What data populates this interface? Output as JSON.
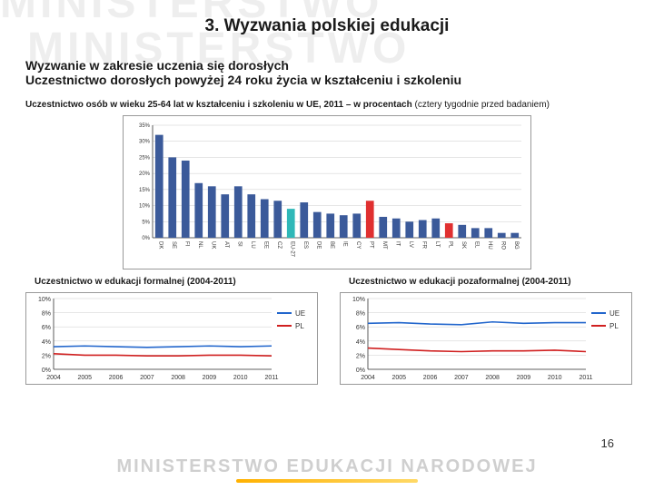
{
  "watermark": {
    "top1": "MINISTERSTWO",
    "top2": "MINISTERSTWO",
    "bottom": "MINISTERSTWO EDUKACJI NARODOWEJ"
  },
  "title": "3. Wyzwania polskiej edukacji",
  "subtitle1": "Wyzwanie w zakresie uczenia się dorosłych",
  "subtitle2": "Uczestnictwo dorosłych powyżej 24 roku życia w kształceniu i szkoleniu",
  "caption_main": {
    "bold": "Uczestnictwo osób w wieku 25-64 lat w kształceniu i szkoleniu w UE, 2011 – w procentach ",
    "light": "(cztery tygodnie przed badaniem)"
  },
  "main_chart": {
    "type": "bar",
    "ylim": [
      0,
      35
    ],
    "yticks": [
      0,
      5,
      10,
      15,
      20,
      25,
      30,
      35
    ],
    "ytick_suffix": "%",
    "bar_default_color": "#3b5a9a",
    "highlight_colors": {
      "EU-27": "#2fb8b8",
      "PT": "#e03030",
      "PL": "#e03030"
    },
    "grid_color": "#cccccc",
    "background_color": "#ffffff",
    "axis_font_size": 6,
    "categories": [
      "DK",
      "SE",
      "FI",
      "NL",
      "UK",
      "AT",
      "SI",
      "LU",
      "EE",
      "CZ",
      "EU-27",
      "ES",
      "DE",
      "BE",
      "IE",
      "CY",
      "PT",
      "MT",
      "IT",
      "LV",
      "FR",
      "LT",
      "PL",
      "SK",
      "EL",
      "HU",
      "RO",
      "BG"
    ],
    "values": [
      32,
      25,
      24,
      17,
      16,
      13.5,
      16,
      13.5,
      12,
      11.5,
      9,
      11,
      8,
      7.5,
      7,
      7.5,
      11.5,
      6.5,
      6,
      5,
      5.5,
      6,
      4.5,
      4,
      3,
      3,
      1.5,
      1.5
    ]
  },
  "left_chart": {
    "caption": "Uczestnictwo w edukacji formalnej (2004-2011)",
    "type": "line",
    "xcategories": [
      "2004",
      "2005",
      "2006",
      "2007",
      "2008",
      "2009",
      "2010",
      "2011"
    ],
    "ylim": [
      0,
      10
    ],
    "yticks": [
      0,
      2,
      4,
      6,
      8,
      10
    ],
    "ytick_suffix": "%",
    "series": [
      {
        "name": "UE",
        "color": "#2266cc",
        "values": [
          3.2,
          3.3,
          3.2,
          3.1,
          3.2,
          3.3,
          3.2,
          3.3
        ]
      },
      {
        "name": "PL",
        "color": "#d02020",
        "values": [
          2.2,
          2.0,
          2.0,
          1.9,
          1.9,
          2.0,
          2.0,
          1.9
        ]
      }
    ],
    "grid_color": "#cccccc",
    "axis_font_size": 7,
    "legend_font_size": 8
  },
  "right_chart": {
    "caption": "Uczestnictwo w edukacji pozaformalnej (2004-2011)",
    "type": "line",
    "xcategories": [
      "2004",
      "2005",
      "2006",
      "2007",
      "2008",
      "2009",
      "2010",
      "2011"
    ],
    "ylim": [
      0,
      10
    ],
    "yticks": [
      0,
      2,
      4,
      6,
      8,
      10
    ],
    "ytick_suffix": "%",
    "series": [
      {
        "name": "UE",
        "color": "#2266cc",
        "values": [
          6.5,
          6.6,
          6.4,
          6.3,
          6.7,
          6.5,
          6.6,
          6.6
        ]
      },
      {
        "name": "PL",
        "color": "#d02020",
        "values": [
          3.0,
          2.8,
          2.6,
          2.5,
          2.6,
          2.6,
          2.7,
          2.5
        ]
      }
    ],
    "grid_color": "#cccccc",
    "axis_font_size": 7,
    "legend_font_size": 8
  },
  "page_number": "16"
}
